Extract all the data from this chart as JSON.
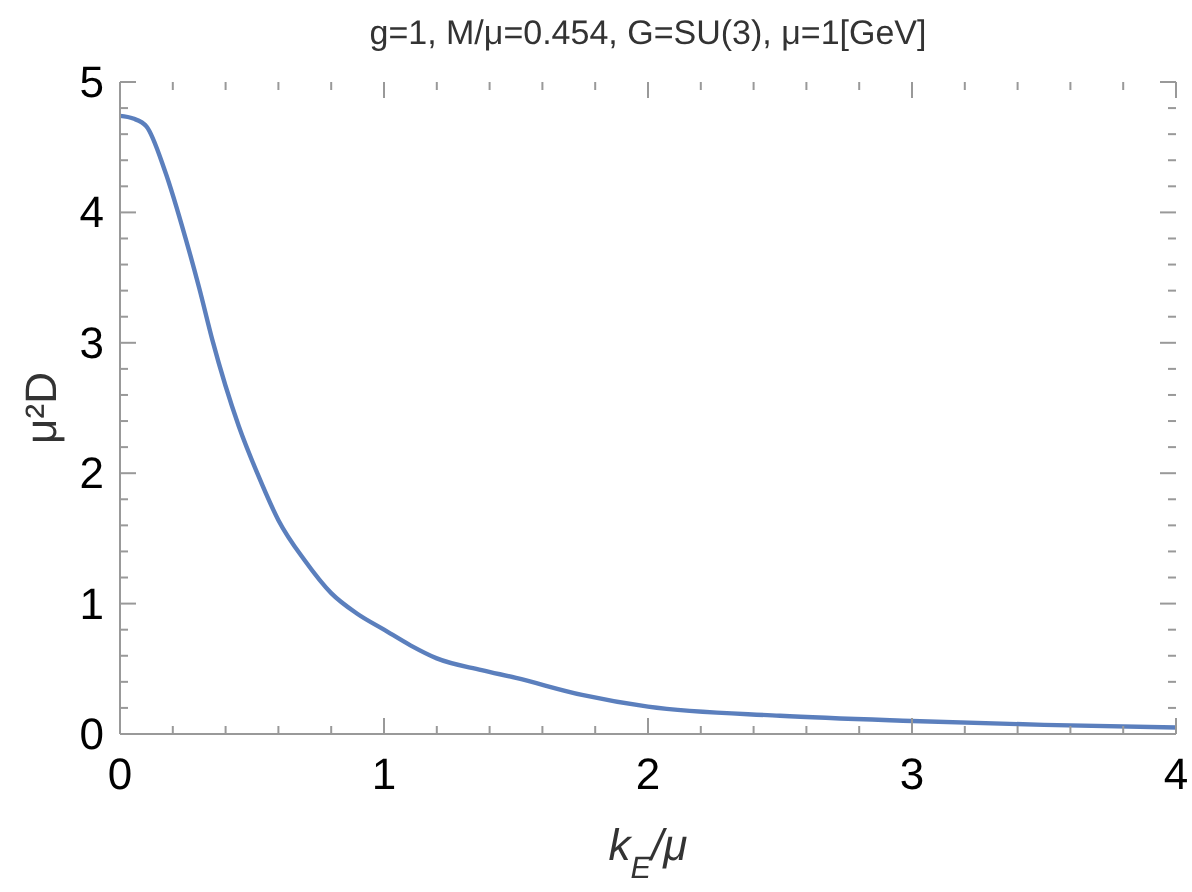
{
  "chart_data": {
    "type": "line",
    "title": "g=1, M/μ=0.454, G=SU(3), μ=1[GeV]",
    "xlabel": "k$_{E}$/μ",
    "ylabel": "μ²D",
    "x": [
      0,
      0.05,
      0.1,
      0.17,
      0.25,
      0.3,
      0.35,
      0.45,
      0.52,
      0.6,
      0.7,
      0.8,
      0.9,
      1,
      1.1,
      1.2,
      1.37,
      1.5,
      1.75,
      2,
      2.5,
      3,
      3.5,
      4
    ],
    "series": [
      {
        "color": "#5b7fbd",
        "values": [
          4.74,
          4.72,
          4.66,
          4.32,
          3.79,
          3.42,
          3.02,
          2.36,
          2.0,
          1.64,
          1.33,
          1.08,
          0.92,
          0.8,
          0.68,
          0.58,
          0.49,
          0.43,
          0.3,
          0.21,
          0.14,
          0.1,
          0.07,
          0.05
        ]
      }
    ],
    "xlim": [
      0,
      4
    ],
    "ylim": [
      0,
      5
    ],
    "xticks": [
      0,
      {
        "value": 0.2,
        "label": null
      },
      {
        "value": 0.4,
        "label": null
      },
      {
        "value": 0.6,
        "label": null
      },
      {
        "value": 0.8,
        "label": null
      },
      1,
      {
        "value": 1.2,
        "label": null
      },
      {
        "value": 1.4,
        "label": null
      },
      {
        "value": 1.6,
        "label": null
      },
      {
        "value": 1.8,
        "label": null
      },
      2,
      {
        "value": 2.2,
        "label": null
      },
      {
        "value": 2.4,
        "label": null
      },
      {
        "value": 2.6,
        "label": null
      },
      {
        "value": 2.8,
        "label": null
      },
      3,
      {
        "value": 3.2,
        "label": null
      },
      {
        "value": 3.4,
        "label": null
      },
      {
        "value": 3.6,
        "label": null
      },
      {
        "value": 3.8,
        "label": null
      },
      4
    ],
    "yticks": [
      0,
      {
        "value": 0.2,
        "label": null
      },
      {
        "value": 0.4,
        "label": null
      },
      {
        "value": 0.6,
        "label": null
      },
      {
        "value": 0.8,
        "label": null
      },
      1,
      {
        "value": 1.2,
        "label": null
      },
      {
        "value": 1.4,
        "label": null
      },
      {
        "value": 1.6,
        "label": null
      },
      {
        "value": 1.8,
        "label": null
      },
      2,
      {
        "value": 2.2,
        "label": null
      },
      {
        "value": 2.4,
        "label": null
      },
      {
        "value": 2.6,
        "label": null
      },
      {
        "value": 2.8,
        "label": null
      },
      3,
      {
        "value": 3.2,
        "label": null
      },
      {
        "value": 3.4,
        "label": null
      },
      {
        "value": 3.6,
        "label": null
      },
      {
        "value": 3.8,
        "label": null
      },
      4,
      {
        "value": 4.2,
        "label": null
      },
      {
        "value": 4.4,
        "label": null
      },
      {
        "value": 4.6,
        "label": null
      },
      {
        "value": 4.8,
        "label": null
      },
      5
    ],
    "grid": false,
    "legend": false,
    "marker": "none",
    "line_style": "solid"
  }
}
